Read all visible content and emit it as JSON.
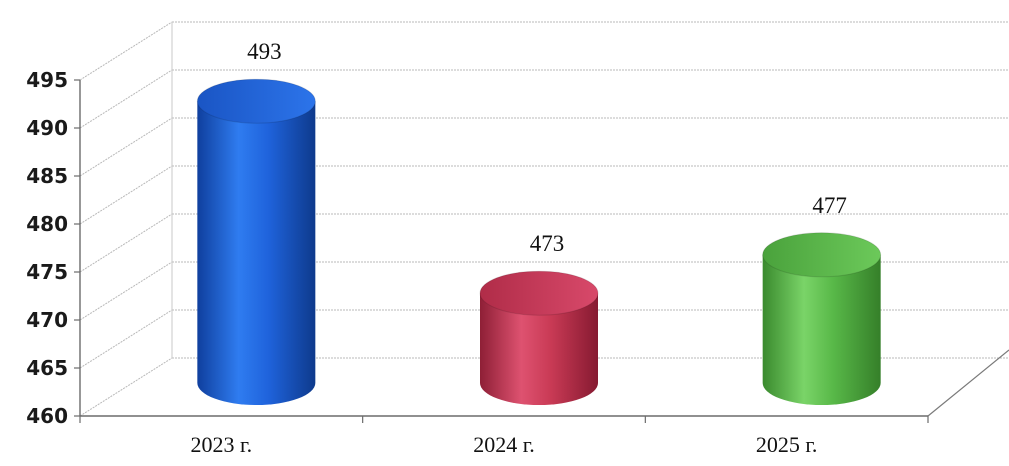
{
  "chart_data": {
    "type": "bar",
    "style": "3d-cylinder",
    "categories": [
      "2023 г.",
      "2024 г.",
      "2025 г."
    ],
    "values": [
      493,
      473,
      477
    ],
    "data_labels": [
      "493",
      "473",
      "477"
    ],
    "colors": [
      "#1f63dc",
      "#c93a55",
      "#58b848"
    ],
    "ylim": [
      460,
      495
    ],
    "yticks": [
      460,
      465,
      470,
      475,
      480,
      485,
      490,
      495
    ],
    "ytick_labels": [
      "460",
      "465",
      "470",
      "475",
      "480",
      "485",
      "490",
      "495"
    ],
    "grid": true,
    "title": "",
    "xlabel": "",
    "ylabel": ""
  }
}
